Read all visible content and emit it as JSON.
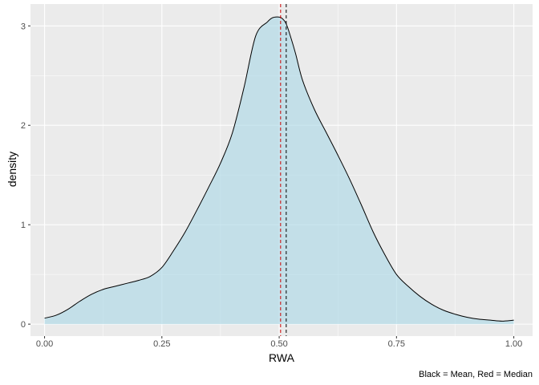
{
  "chart_data": {
    "type": "area",
    "title": "",
    "xlabel": "RWA",
    "ylabel": "density",
    "caption": "Black = Mean, Red = Median",
    "xlim": [
      -0.03,
      1.04
    ],
    "ylim": [
      -0.12,
      3.22
    ],
    "x_ticks": [
      0.0,
      0.25,
      0.5,
      0.75,
      1.0
    ],
    "x_tick_labels": [
      "0.00",
      "0.25",
      "0.50",
      "0.75",
      "1.00"
    ],
    "y_ticks": [
      0,
      1,
      2,
      3
    ],
    "y_tick_labels": [
      "0",
      "1",
      "2",
      "3"
    ],
    "grid": true,
    "colors": {
      "panel": "#ebebeb",
      "grid_major": "#ffffff",
      "fill": "#add8e6",
      "line": "#000000",
      "mean_line": "#000000",
      "median_line": "#cc0000"
    },
    "series": [
      {
        "x": [
          0.0,
          0.025,
          0.05,
          0.075,
          0.1,
          0.125,
          0.15,
          0.175,
          0.2,
          0.225,
          0.25,
          0.275,
          0.3,
          0.325,
          0.35,
          0.375,
          0.4,
          0.425,
          0.45,
          0.475,
          0.485,
          0.495,
          0.505,
          0.515,
          0.525,
          0.535,
          0.55,
          0.575,
          0.6,
          0.625,
          0.65,
          0.675,
          0.7,
          0.725,
          0.75,
          0.775,
          0.8,
          0.825,
          0.85,
          0.875,
          0.9,
          0.925,
          0.95,
          0.975,
          1.0
        ],
        "y": [
          0.06,
          0.09,
          0.15,
          0.23,
          0.3,
          0.35,
          0.38,
          0.41,
          0.44,
          0.48,
          0.57,
          0.74,
          0.93,
          1.15,
          1.38,
          1.62,
          1.92,
          2.38,
          2.9,
          3.04,
          3.08,
          3.09,
          3.08,
          3.02,
          2.88,
          2.72,
          2.45,
          2.16,
          1.93,
          1.7,
          1.46,
          1.2,
          0.93,
          0.7,
          0.5,
          0.38,
          0.28,
          0.2,
          0.14,
          0.1,
          0.07,
          0.05,
          0.04,
          0.03,
          0.04
        ]
      }
    ],
    "mean": 0.515,
    "median": 0.503
  }
}
